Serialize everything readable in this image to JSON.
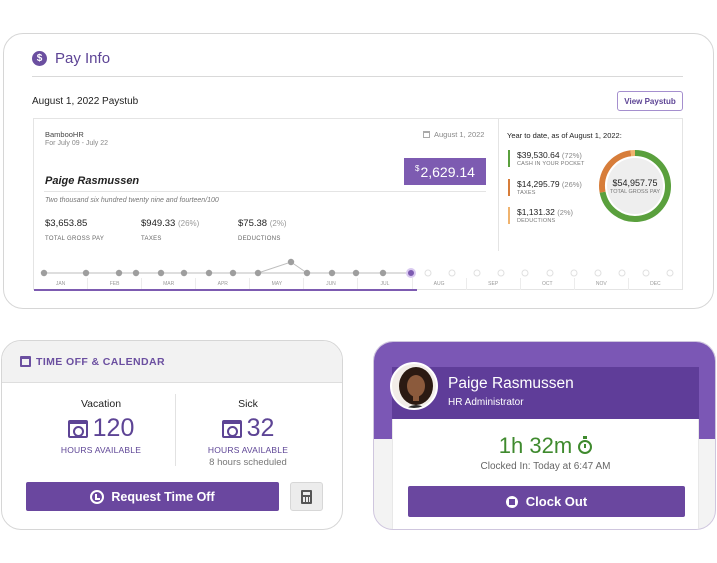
{
  "pay_info": {
    "title": "Pay Info",
    "icon": "dollar-circle-icon",
    "paystub_title": "August 1, 2022 Paystub",
    "view_button": "View Paystub",
    "company": "BambooHR",
    "period": "For July 09 - July 22",
    "stub_date": "August 1, 2022",
    "net_pay_symbol": "$",
    "net_pay": "2,629.14",
    "employee_name": "Paige Rasmussen",
    "amount_words": "Two thousand six hundred twenty nine and fourteen/100",
    "gross": {
      "amount": "$3,653.85",
      "label": "TOTAL GROSS PAY"
    },
    "taxes": {
      "amount": "$949.33",
      "pct": "(26%)",
      "label": "TAXES"
    },
    "deductions": {
      "amount": "$75.38",
      "pct": "(2%)",
      "label": "DEDUCTIONS"
    },
    "ytd": {
      "title": "Year to date, as of August 1, 2022:",
      "cash": {
        "amount": "$39,530.64",
        "pct": "(72%)",
        "label": "CASH IN YOUR POCKET",
        "color": "#5aa03d"
      },
      "taxes": {
        "amount": "$14,295.79",
        "pct": "(26%)",
        "label": "TAXES",
        "color": "#d77d3a"
      },
      "deductions": {
        "amount": "$1,131.32",
        "pct": "(2%)",
        "label": "DEDUCTIONS",
        "color": "#f0b36e"
      },
      "gross_total": "$54,957.75",
      "gross_label": "TOTAL GROSS PAY",
      "donut_fractions": [
        0.72,
        0.26,
        0.02
      ]
    },
    "months": [
      "JAN",
      "FEB",
      "MAR",
      "APR",
      "MAY",
      "JUN",
      "JUL",
      "AUG",
      "SEP",
      "OCT",
      "NOV",
      "DEC"
    ]
  },
  "time_off": {
    "title": "TIME OFF & CALENDAR",
    "vacation": {
      "label": "Vacation",
      "value": "120",
      "unit": "HOURS AVAILABLE"
    },
    "sick": {
      "label": "Sick",
      "value": "32",
      "unit": "HOURS AVAILABLE",
      "scheduled": "8 hours scheduled"
    },
    "request_button": "Request Time Off",
    "calculator_icon": "calculator-icon"
  },
  "clock": {
    "name": "Paige Rasmussen",
    "role": "HR Administrator",
    "elapsed": "1h 32m",
    "clocked_in": "Clocked In: Today at 6:47 AM",
    "clock_out_button": "Clock Out",
    "accent": "#6a479f",
    "time_color": "#3f8a2e"
  }
}
